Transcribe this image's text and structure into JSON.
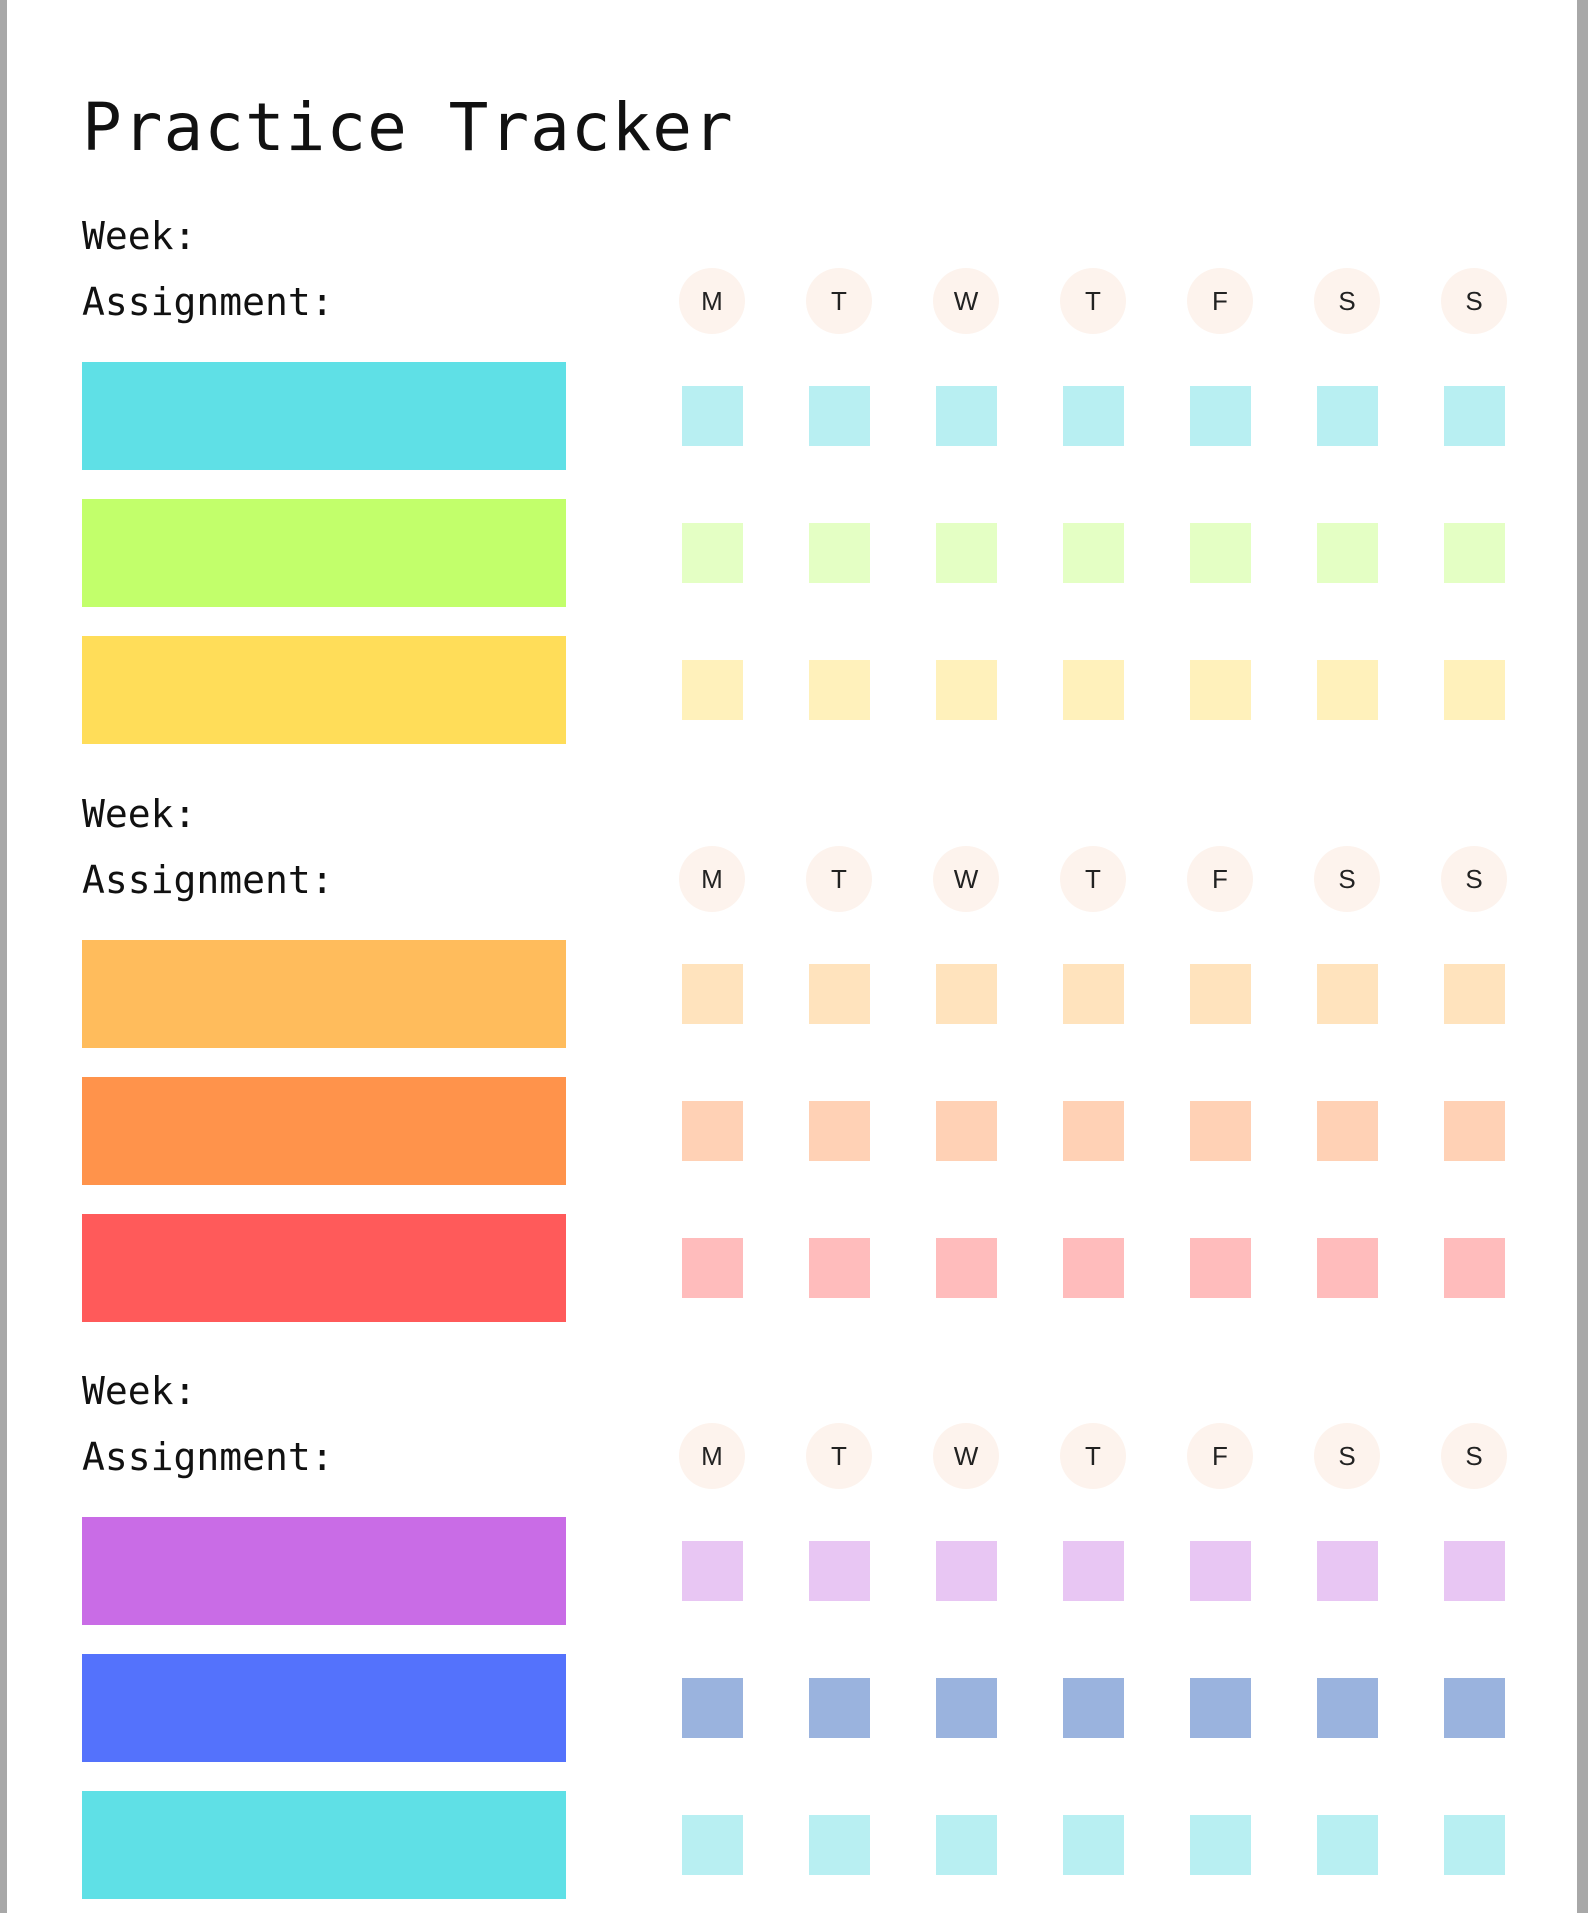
{
  "title": "Practice Tracker",
  "week_label": "Week:",
  "assignment_label": "Assignment:",
  "days": [
    "M",
    "T",
    "W",
    "T",
    "F",
    "S",
    "S"
  ],
  "sections": [
    {
      "rows": [
        {
          "bar_color": "#5fe0e6",
          "box_color": "#b8eff2"
        },
        {
          "bar_color": "#c2ff6b",
          "box_color": "#e4ffc4"
        },
        {
          "bar_color": "#ffdd59",
          "box_color": "#fff1bb"
        }
      ]
    },
    {
      "rows": [
        {
          "bar_color": "#ffbc5c",
          "box_color": "#ffe3bd"
        },
        {
          "bar_color": "#ff934b",
          "box_color": "#ffd1b5"
        },
        {
          "bar_color": "#ff5a5a",
          "box_color": "#ffbcbc"
        }
      ]
    },
    {
      "rows": [
        {
          "bar_color": "#c96ce6",
          "box_color": "#e8c6f3"
        },
        {
          "bar_color": "#5472fc",
          "box_color": "#9ab3de"
        },
        {
          "bar_color": "#5fe0e6",
          "box_color": "#b8eff2"
        }
      ]
    }
  ]
}
